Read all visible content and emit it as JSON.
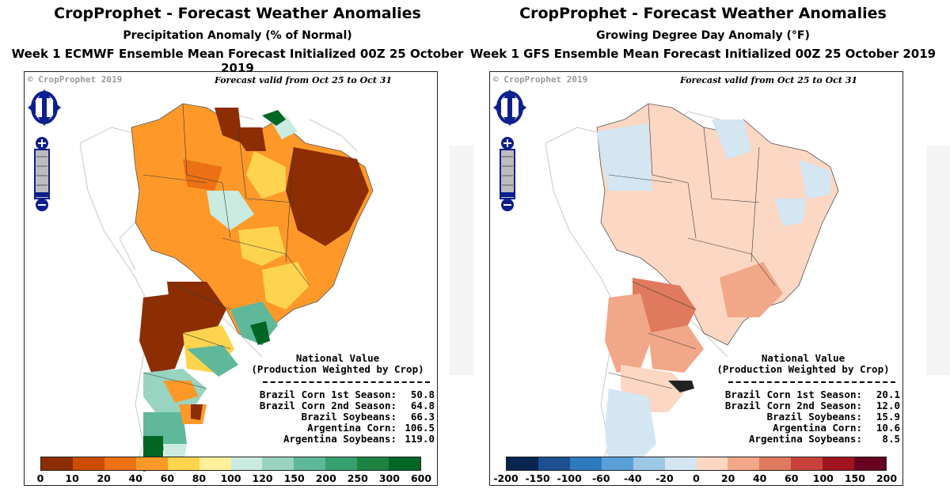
{
  "left_panel": {
    "title": "CropProphet - Forecast Weather Anomalies",
    "subtitle": "Precipitation Anomaly (% of Normal)",
    "model_line": "Week 1 ECMWF Ensemble Mean Forecast Initialized 00Z 25 October 2019",
    "copyright": "© CropProphet 2019",
    "validity": "Forecast valid from Oct 25 to Oct 31",
    "national_header_1": "National Value",
    "national_header_2": "(Production Weighted by Crop)",
    "values": [
      {
        "label": "Brazil Corn 1st Season:",
        "value": "50.8"
      },
      {
        "label": "Brazil Corn 2nd Season:",
        "value": "64.8"
      },
      {
        "label": "Brazil Soybeans:",
        "value": "66.3"
      },
      {
        "label": "Argentina Corn:",
        "value": "106.5"
      },
      {
        "label": "Argentina Soybeans:",
        "value": "119.0"
      }
    ],
    "legend_ticks": [
      "0",
      "10",
      "20",
      "40",
      "60",
      "80",
      "100",
      "120",
      "150",
      "200",
      "250",
      "300",
      "600"
    ],
    "legend_colors": [
      "#8c2d04",
      "#cc4c02",
      "#ec7014",
      "#fe9929",
      "#fed44e",
      "#fff19a",
      "#c9ebe0",
      "#98d4c0",
      "#5fb89a",
      "#36a06e",
      "#1c8440",
      "#006624"
    ]
  },
  "right_panel": {
    "title": "CropProphet - Forecast Weather Anomalies",
    "subtitle": "Growing Degree Day Anomaly (°F)",
    "model_line": "Week 1 GFS Ensemble Mean Forecast Initialized 00Z 25 October 2019",
    "copyright": "© CropProphet 2019",
    "validity": "Forecast valid from Oct 25 to Oct 31",
    "national_header_1": "National Value",
    "national_header_2": "(Production Weighted by Crop)",
    "values": [
      {
        "label": "Brazil Corn 1st Season:",
        "value": "20.1"
      },
      {
        "label": "Brazil Corn 2nd Season:",
        "value": "12.0"
      },
      {
        "label": "Brazil Soybeans:",
        "value": "15.9"
      },
      {
        "label": "Argentina Corn:",
        "value": "10.6"
      },
      {
        "label": "Argentina Soybeans:",
        "value": "8.5"
      }
    ],
    "legend_ticks": [
      "-200",
      "-150",
      "-100",
      "-60",
      "-40",
      "-20",
      "0",
      "20",
      "40",
      "60",
      "100",
      "150",
      "200"
    ],
    "legend_colors": [
      "#08244f",
      "#1d4f91",
      "#2f7bbf",
      "#5aa0d8",
      "#9cc8e6",
      "#d3e6f2",
      "#fbd7c4",
      "#f2a788",
      "#e07a5e",
      "#c8423c",
      "#a0141f",
      "#67001f"
    ]
  },
  "colors": {
    "nav_blue": "#0c1f8e",
    "outline": "#444444",
    "border_grey": "#bfbfbf"
  }
}
